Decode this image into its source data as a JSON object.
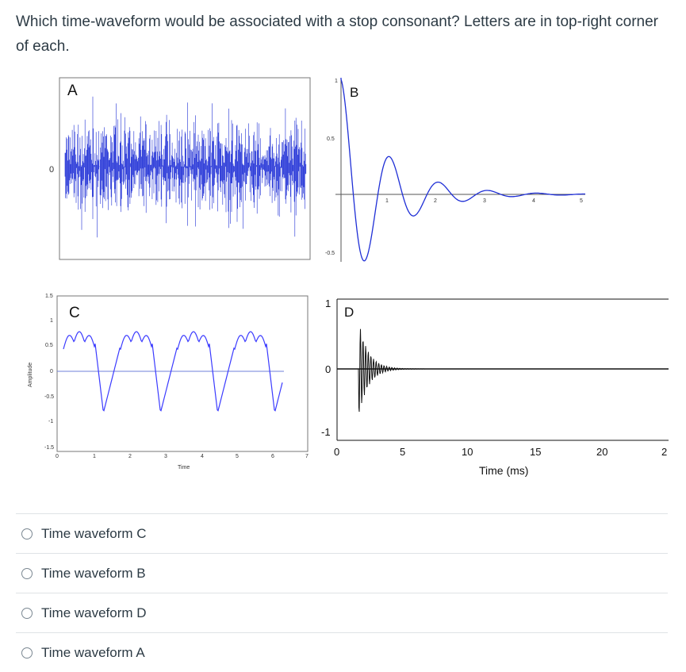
{
  "question": {
    "text": "Which time-waveform would be associated with a stop consonant?  Letters are in top-right corner of each."
  },
  "figure": {
    "panel_a": {
      "letter": "A",
      "y_ticks": [
        "0"
      ]
    },
    "panel_b": {
      "letter": "B",
      "y_ticks": [
        "1",
        "0.5",
        "-0.5"
      ],
      "x_ticks": [
        "1",
        "2",
        "3",
        "4",
        "5"
      ]
    },
    "panel_c": {
      "letter": "C",
      "y_ticks": [
        "1.5",
        "1",
        "0.5",
        "0",
        "-0.5",
        "-1",
        "-1.5"
      ],
      "x_ticks": [
        "0",
        "1",
        "2",
        "3",
        "4",
        "5",
        "6",
        "7"
      ],
      "xlabel": "Time",
      "ylabel": "Amplitude"
    },
    "panel_d": {
      "letter": "D",
      "y_ticks": [
        "1",
        "0",
        "-1"
      ],
      "x_ticks": [
        "0",
        "5",
        "10",
        "15",
        "20",
        "2"
      ],
      "xlabel": "Time (ms)"
    },
    "colors": {
      "blue": "#1f2fd6",
      "wave_blue": "#3b3bff",
      "black": "#111111"
    }
  },
  "answers": [
    {
      "label": "Time waveform C"
    },
    {
      "label": "Time waveform B"
    },
    {
      "label": "Time waveform D"
    },
    {
      "label": "Time waveform A"
    }
  ]
}
